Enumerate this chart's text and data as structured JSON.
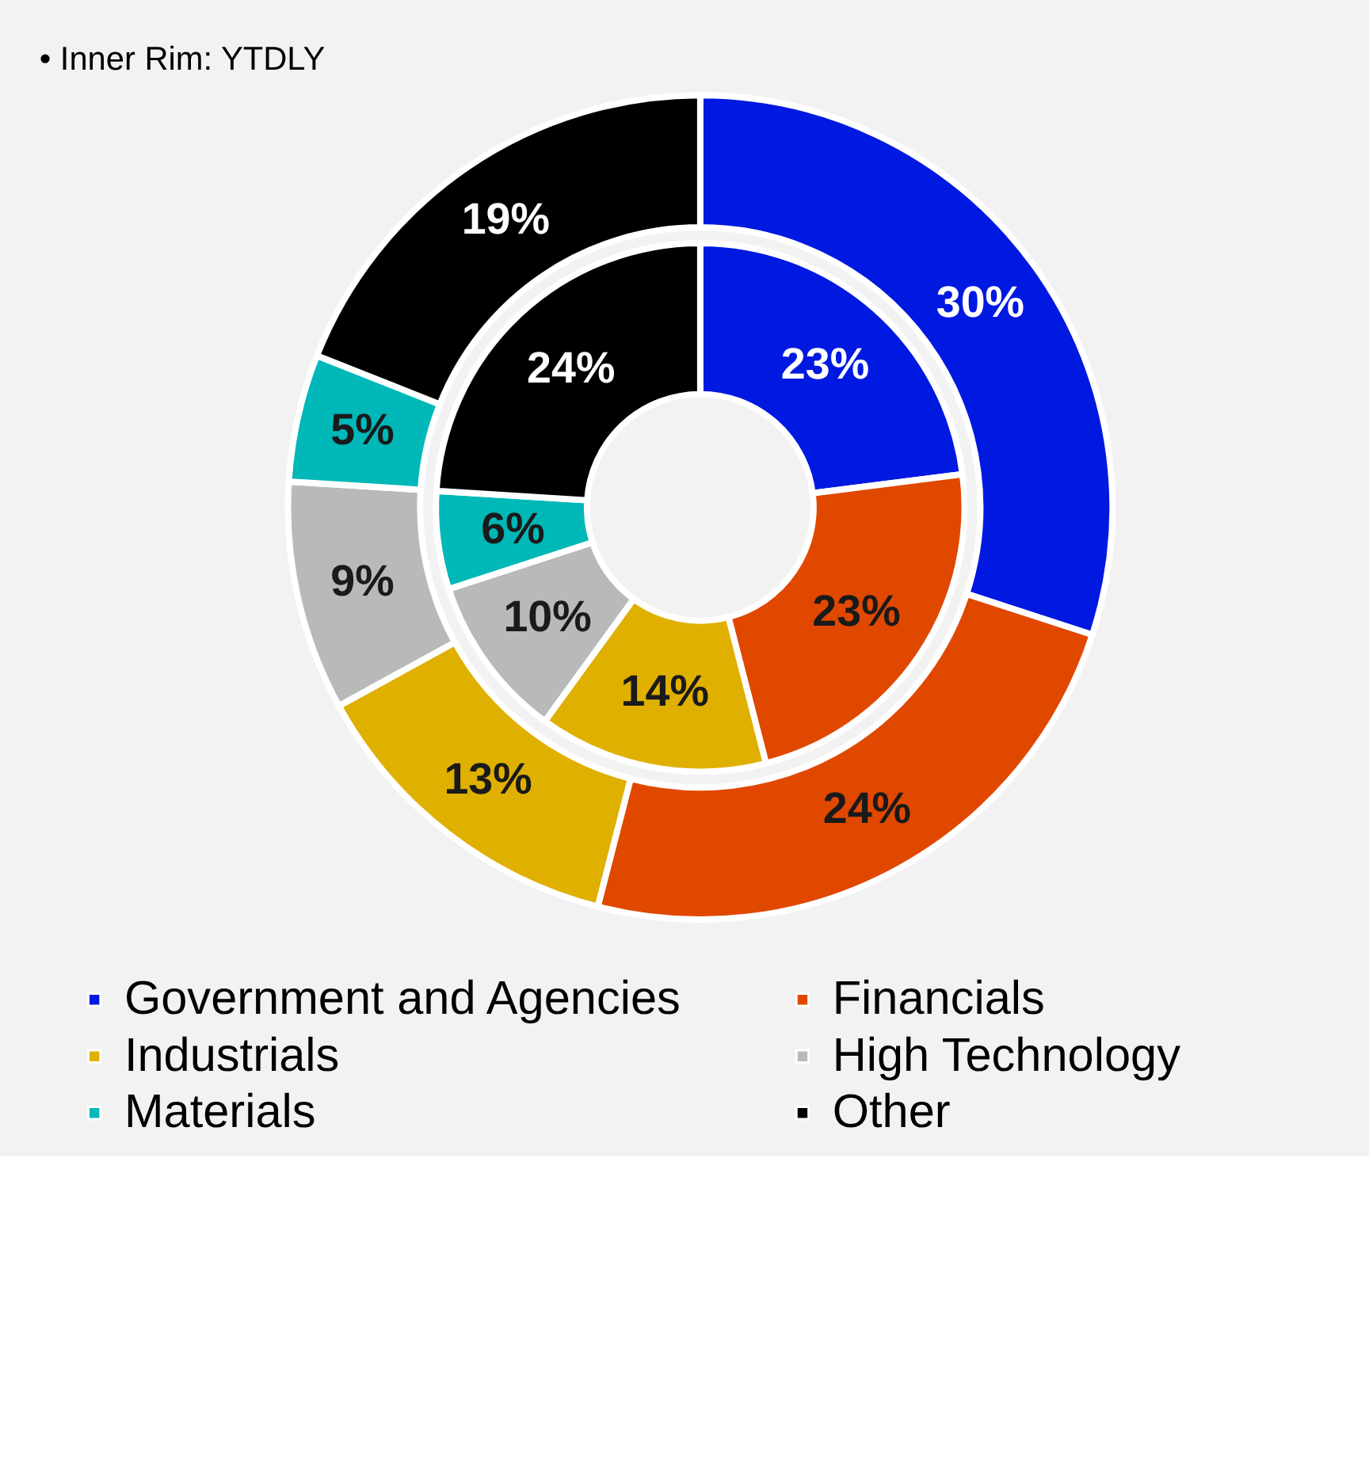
{
  "chart_data": {
    "type": "donut",
    "categories": [
      "Government and Agencies",
      "Financials",
      "Industrials",
      "High Technology",
      "Materials",
      "Other"
    ],
    "colors": [
      "#0019e0",
      "#e04800",
      "#e0b000",
      "#b8baba",
      "#00b8b8",
      "#000000"
    ],
    "series": [
      {
        "values": [
          30,
          24,
          13,
          9,
          5,
          19
        ],
        "value_labels": [
          "30%",
          "24%",
          "13%",
          "9%",
          "5%",
          "19%"
        ]
      },
      {
        "values": [
          23,
          23,
          14,
          10,
          6,
          24
        ],
        "value_labels": [
          "23%",
          "23%",
          "14%",
          "10%",
          "6%",
          "24%"
        ]
      }
    ],
    "annotations": [
      "• Inner Rim: YTDLY"
    ],
    "legend": "bottom"
  }
}
